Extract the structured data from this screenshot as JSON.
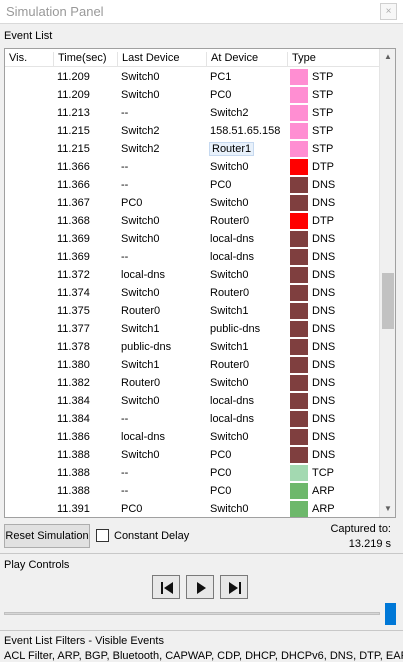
{
  "window": {
    "title": "Simulation Panel",
    "close_glyph": "×"
  },
  "event_list": {
    "label": "Event List",
    "columns": [
      "Vis.",
      "Time(sec)",
      "Last Device",
      "At Device",
      "Type"
    ],
    "rows": [
      {
        "time": "11.209",
        "last": "Switch0",
        "at": "PC1",
        "type": "STP",
        "color": "#ff8ed2"
      },
      {
        "time": "11.209",
        "last": "Switch0",
        "at": "PC0",
        "type": "STP",
        "color": "#ff8ed2"
      },
      {
        "time": "11.213",
        "last": "--",
        "at": "Switch2",
        "type": "STP",
        "color": "#ff8ed2"
      },
      {
        "time": "11.215",
        "last": "Switch2",
        "at": "158.51.65.158",
        "type": "STP",
        "color": "#ff8ed2"
      },
      {
        "time": "11.215",
        "last": "Switch2",
        "at": "Router1",
        "type": "STP",
        "color": "#ff8ed2"
      },
      {
        "time": "11.366",
        "last": "--",
        "at": "Switch0",
        "type": "DTP",
        "color": "#ff0000"
      },
      {
        "time": "11.366",
        "last": "--",
        "at": "PC0",
        "type": "DNS",
        "color": "#7f3f3f"
      },
      {
        "time": "11.367",
        "last": "PC0",
        "at": "Switch0",
        "type": "DNS",
        "color": "#7f3f3f"
      },
      {
        "time": "11.368",
        "last": "Switch0",
        "at": "Router0",
        "type": "DTP",
        "color": "#ff0000"
      },
      {
        "time": "11.369",
        "last": "Switch0",
        "at": "local-dns",
        "type": "DNS",
        "color": "#7f3f3f"
      },
      {
        "time": "11.369",
        "last": "--",
        "at": "local-dns",
        "type": "DNS",
        "color": "#7f3f3f"
      },
      {
        "time": "11.372",
        "last": "local-dns",
        "at": "Switch0",
        "type": "DNS",
        "color": "#7f3f3f"
      },
      {
        "time": "11.374",
        "last": "Switch0",
        "at": "Router0",
        "type": "DNS",
        "color": "#7f3f3f"
      },
      {
        "time": "11.375",
        "last": "Router0",
        "at": "Switch1",
        "type": "DNS",
        "color": "#7f3f3f"
      },
      {
        "time": "11.377",
        "last": "Switch1",
        "at": "public-dns",
        "type": "DNS",
        "color": "#7f3f3f"
      },
      {
        "time": "11.378",
        "last": "public-dns",
        "at": "Switch1",
        "type": "DNS",
        "color": "#7f3f3f"
      },
      {
        "time": "11.380",
        "last": "Switch1",
        "at": "Router0",
        "type": "DNS",
        "color": "#7f3f3f"
      },
      {
        "time": "11.382",
        "last": "Router0",
        "at": "Switch0",
        "type": "DNS",
        "color": "#7f3f3f"
      },
      {
        "time": "11.384",
        "last": "Switch0",
        "at": "local-dns",
        "type": "DNS",
        "color": "#7f3f3f"
      },
      {
        "time": "11.384",
        "last": "--",
        "at": "local-dns",
        "type": "DNS",
        "color": "#7f3f3f"
      },
      {
        "time": "11.386",
        "last": "local-dns",
        "at": "Switch0",
        "type": "DNS",
        "color": "#7f3f3f"
      },
      {
        "time": "11.388",
        "last": "Switch0",
        "at": "PC0",
        "type": "DNS",
        "color": "#7f3f3f"
      },
      {
        "time": "11.388",
        "last": "--",
        "at": "PC0",
        "type": "TCP",
        "color": "#a3d9b1"
      },
      {
        "time": "11.388",
        "last": "--",
        "at": "PC0",
        "type": "ARP",
        "color": "#6db86b"
      },
      {
        "time": "11.391",
        "last": "PC0",
        "at": "Switch0",
        "type": "ARP",
        "color": "#6db86b"
      }
    ]
  },
  "controls": {
    "reset_label": "Reset Simulation",
    "constant_delay_label": "Constant Delay",
    "captured_label": "Captured to:",
    "captured_time": "13.219 s"
  },
  "play_controls": {
    "label": "Play Controls",
    "buttons": [
      "skip-back-icon",
      "play-icon",
      "skip-forward-icon"
    ],
    "slider_position": 1.0
  },
  "filters": {
    "label": "Event List Filters - Visible Events",
    "text": "ACL Filter, ARP, BGP, Bluetooth, CAPWAP, CDP, DHCP, DHCPv6, DNS, DTP, EAPOL"
  }
}
